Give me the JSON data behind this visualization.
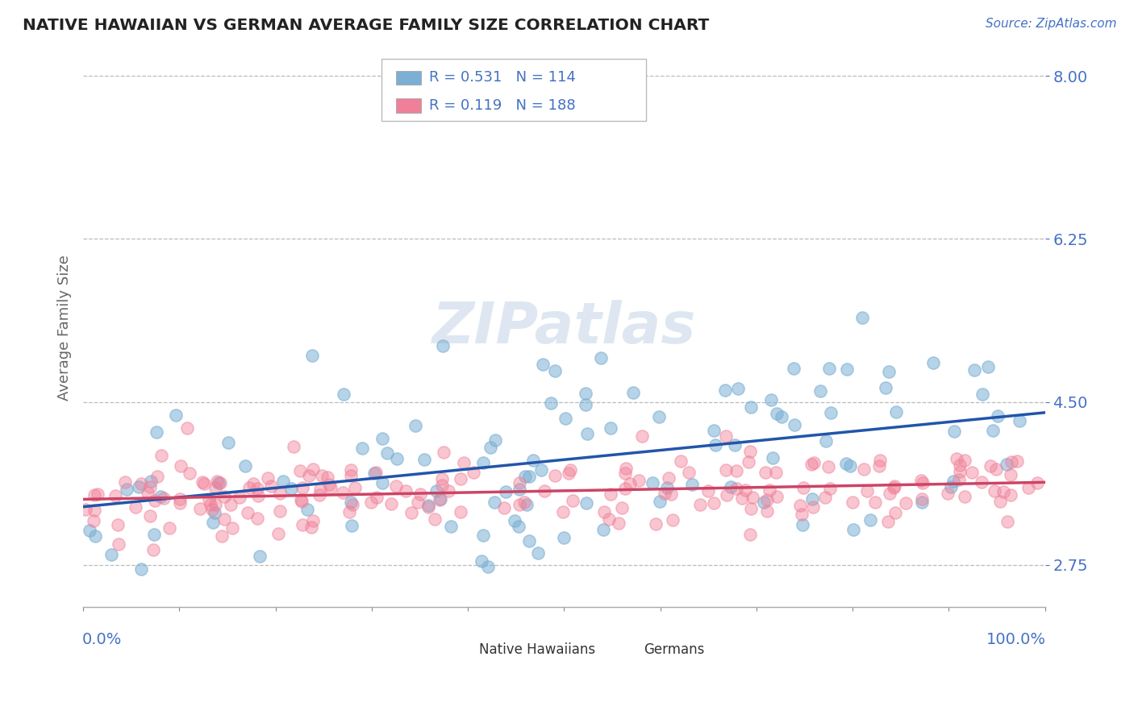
{
  "title": "NATIVE HAWAIIAN VS GERMAN AVERAGE FAMILY SIZE CORRELATION CHART",
  "source_text": "Source: ZipAtlas.com",
  "ylabel": "Average Family Size",
  "yticks": [
    2.75,
    4.5,
    6.25,
    8.0
  ],
  "xmin": 0.0,
  "xmax": 100.0,
  "ymin": 2.3,
  "ymax": 8.3,
  "hawaiian_color": "#7bafd4",
  "german_color": "#f08098",
  "hawaiian_line_color": "#2255aa",
  "german_line_color": "#cc4466",
  "hawaiian_R": 0.531,
  "hawaiian_N": 114,
  "german_R": 0.119,
  "german_N": 188,
  "background_color": "#ffffff",
  "grid_color": "#bbbbbb",
  "title_color": "#222222",
  "axis_label_color": "#4472c4",
  "ylabel_color": "#666666",
  "watermark_color": "#c8d8e8",
  "legend_text_color": "#4472c4"
}
